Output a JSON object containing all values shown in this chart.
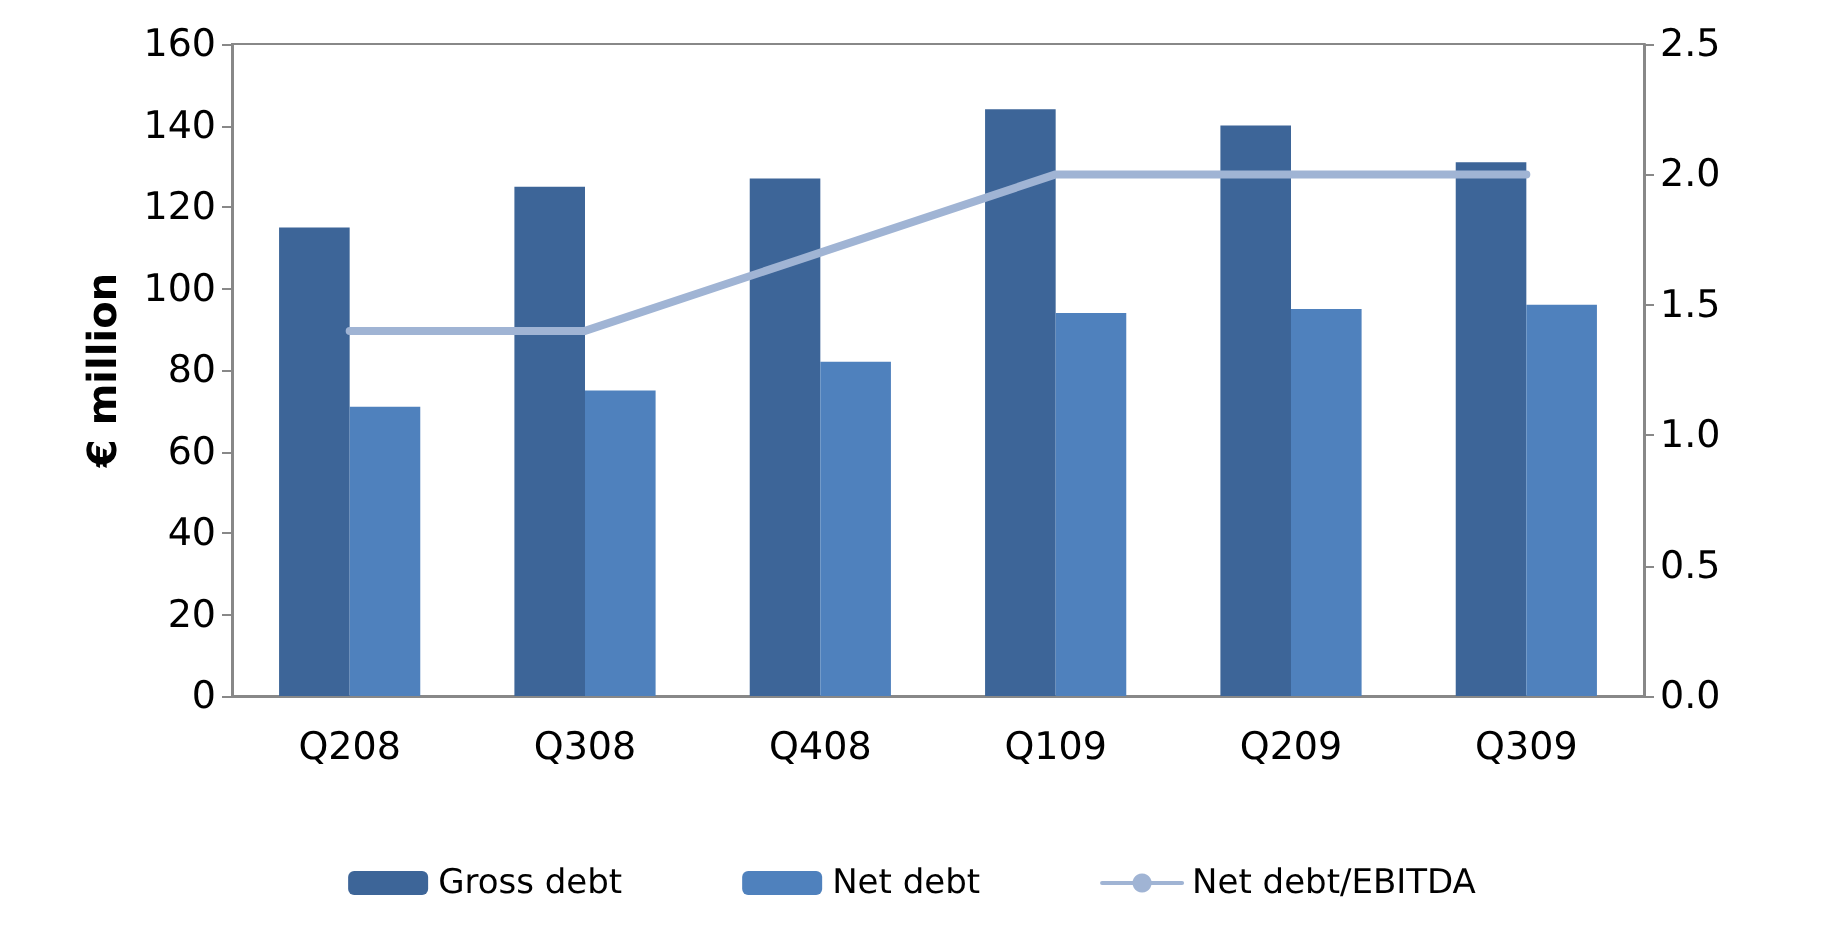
{
  "chart_data": {
    "type": "bar",
    "categories": [
      "Q208",
      "Q308",
      "Q408",
      "Q109",
      "Q209",
      "Q309"
    ],
    "ylabel": "€ million",
    "ylim": [
      0,
      160
    ],
    "yticks": [
      0,
      20,
      40,
      60,
      80,
      100,
      120,
      140,
      160
    ],
    "y2lim": [
      0,
      2.5
    ],
    "y2ticks": [
      {
        "value": 0,
        "label": "0.0"
      },
      {
        "value": 0.5,
        "label": "0.5"
      },
      {
        "value": 1,
        "label": "1.0"
      },
      {
        "value": 1.5,
        "label": "1.5"
      },
      {
        "value": 2,
        "label": "2.0"
      },
      {
        "value": 2.5,
        "label": "2.5"
      }
    ],
    "series": [
      {
        "name": "Gross debt",
        "color": "#3d6598",
        "values": [
          115,
          125,
          127,
          144,
          140,
          131
        ]
      },
      {
        "name": "Net debt",
        "color": "#4f81bd",
        "values": [
          71,
          75,
          82,
          94,
          95,
          96
        ]
      },
      {
        "name": "Net debt/EBITDA",
        "type": "line",
        "axis": "y2",
        "color": "#a0b4d4",
        "values": [
          1.4,
          1.4,
          1.7,
          2.0,
          2.0,
          2.0
        ]
      }
    ],
    "grid": false,
    "legend": "bottom",
    "marker": "none",
    "line_style": "solid"
  }
}
